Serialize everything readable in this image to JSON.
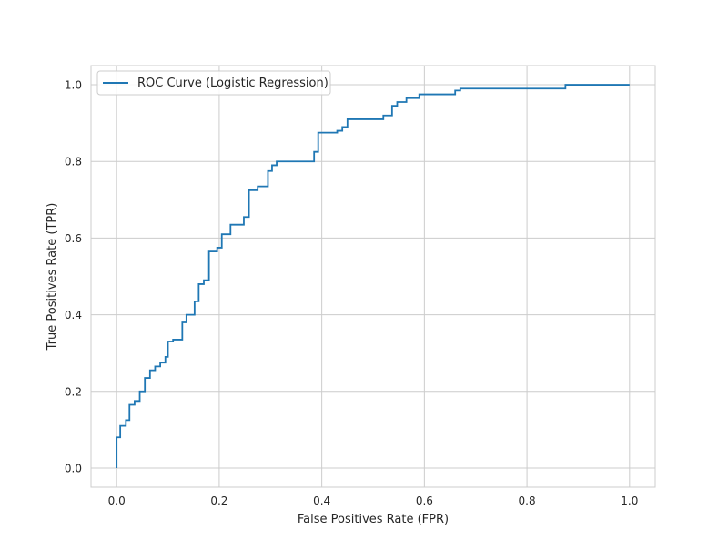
{
  "chart_data": {
    "type": "line",
    "title": "",
    "xlabel": "False Positives Rate (FPR)",
    "ylabel": "True Positives Rate (TPR)",
    "xlim": [
      -0.05,
      1.05
    ],
    "ylim": [
      -0.05,
      1.05
    ],
    "xticks": [
      0.0,
      0.2,
      0.4,
      0.6,
      0.8,
      1.0
    ],
    "xtick_labels": [
      "0.0",
      "0.2",
      "0.4",
      "0.6",
      "0.8",
      "1.0"
    ],
    "yticks": [
      0.0,
      0.2,
      0.4,
      0.6,
      0.8,
      1.0
    ],
    "ytick_labels": [
      "0.0",
      "0.2",
      "0.4",
      "0.6",
      "0.8",
      "1.0"
    ],
    "grid": true,
    "legend_position": "top-left",
    "series": [
      {
        "name": "ROC Curve (Logistic Regression)",
        "color": "#1f77b4",
        "step": true,
        "x": [
          0.0,
          0.0,
          0.0,
          0.007,
          0.007,
          0.018,
          0.018,
          0.025,
          0.025,
          0.035,
          0.035,
          0.045,
          0.045,
          0.055,
          0.055,
          0.065,
          0.065,
          0.075,
          0.075,
          0.085,
          0.085,
          0.095,
          0.095,
          0.1,
          0.1,
          0.11,
          0.11,
          0.128,
          0.128,
          0.136,
          0.136,
          0.152,
          0.152,
          0.16,
          0.16,
          0.17,
          0.17,
          0.18,
          0.18,
          0.196,
          0.196,
          0.205,
          0.205,
          0.222,
          0.222,
          0.248,
          0.248,
          0.258,
          0.258,
          0.275,
          0.275,
          0.295,
          0.295,
          0.303,
          0.303,
          0.312,
          0.312,
          0.385,
          0.385,
          0.393,
          0.393,
          0.43,
          0.43,
          0.44,
          0.44,
          0.45,
          0.45,
          0.52,
          0.52,
          0.537,
          0.537,
          0.547,
          0.547,
          0.565,
          0.565,
          0.59,
          0.59,
          0.66,
          0.66,
          0.67,
          0.67,
          0.875,
          0.875,
          1.0
        ],
        "y": [
          0.0,
          0.08,
          0.08,
          0.08,
          0.11,
          0.11,
          0.125,
          0.125,
          0.165,
          0.165,
          0.175,
          0.175,
          0.2,
          0.2,
          0.235,
          0.235,
          0.255,
          0.255,
          0.265,
          0.265,
          0.275,
          0.275,
          0.29,
          0.29,
          0.33,
          0.33,
          0.335,
          0.335,
          0.38,
          0.38,
          0.4,
          0.4,
          0.435,
          0.435,
          0.48,
          0.48,
          0.49,
          0.49,
          0.565,
          0.565,
          0.575,
          0.575,
          0.61,
          0.61,
          0.635,
          0.635,
          0.655,
          0.655,
          0.725,
          0.725,
          0.735,
          0.735,
          0.775,
          0.775,
          0.79,
          0.79,
          0.8,
          0.8,
          0.825,
          0.825,
          0.875,
          0.875,
          0.88,
          0.88,
          0.89,
          0.89,
          0.91,
          0.91,
          0.92,
          0.92,
          0.945,
          0.945,
          0.955,
          0.955,
          0.965,
          0.965,
          0.975,
          0.975,
          0.985,
          0.985,
          0.99,
          0.99,
          1.0,
          1.0
        ]
      }
    ]
  }
}
